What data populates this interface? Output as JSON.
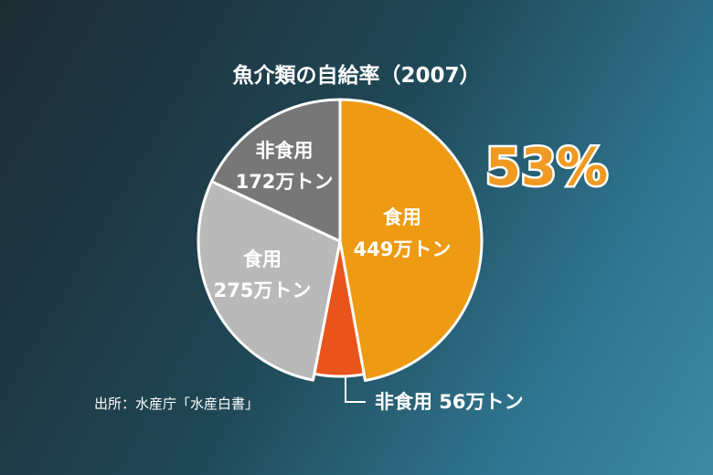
{
  "chart_data": {
    "type": "pie",
    "title": "魚介類の自給率（2007）",
    "source": "出所：水産庁「水産白書」",
    "highlight_value": "53%",
    "slices": [
      {
        "label": "食用",
        "amount": "449万トン",
        "value": 449,
        "color": "#ee9a13"
      },
      {
        "label": "非食用",
        "amount": "56万トン",
        "value": 56,
        "color": "#e9541c"
      },
      {
        "label": "食用",
        "amount": "275万トン",
        "value": 275,
        "color": "#b9b9b9"
      },
      {
        "label": "非食用",
        "amount": "172万トン",
        "value": 172,
        "color": "#777777"
      }
    ]
  }
}
